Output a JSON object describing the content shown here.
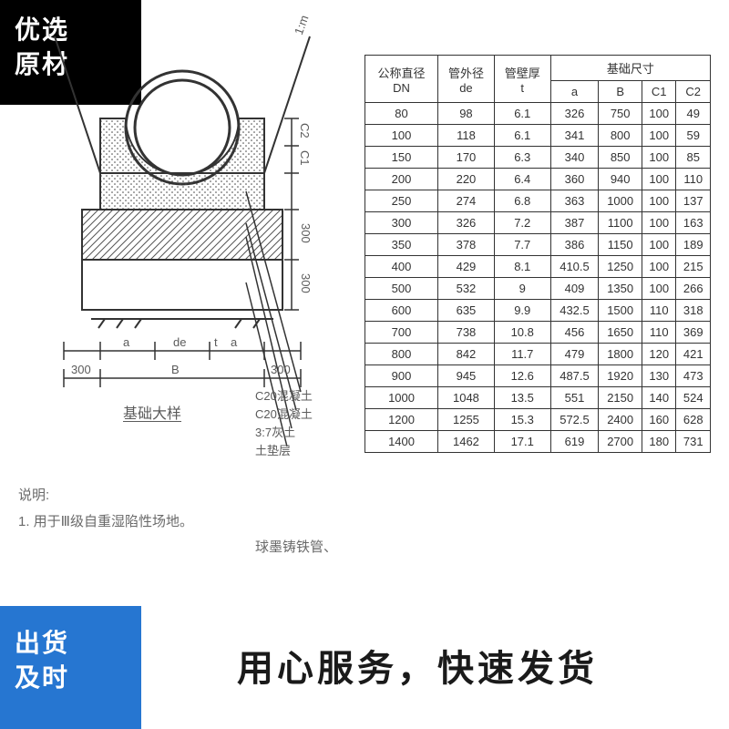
{
  "badges": {
    "top_left_line1": "优选",
    "top_left_line2": "原材",
    "bottom_left_line1": "出货",
    "bottom_left_line2": "及时"
  },
  "overlay": "用心服务，快速发货",
  "diagram": {
    "title": "基础大样",
    "slope_label": "1:m",
    "dim_top_right_1": "C2",
    "dim_top_right_2": "C1",
    "dim_mid_1": "300",
    "dim_mid_2": "300",
    "dim_bottom_left_300": "300",
    "dim_bottom_right_300": "300",
    "dim_a": "a",
    "dim_de": "de",
    "dim_B": "B",
    "dim_t": "t",
    "callout_1": "C20混凝土",
    "callout_2": "C20混凝土",
    "callout_3": "3:7灰土",
    "callout_4": "土垫层"
  },
  "explain": {
    "heading": "说明:",
    "item1": "1. 用于Ⅲ级自重湿陷性场地。",
    "item2_tail": "球墨铸铁管、"
  },
  "table": {
    "col_group_dim": "基础尺寸",
    "columns_row1": [
      "公称直径",
      "管外径",
      "管壁厚",
      "基础尺寸"
    ],
    "columns_row2": [
      "DN",
      "de",
      "t",
      "a",
      "B",
      "C1",
      "C2"
    ],
    "rows": [
      [
        "80",
        "98",
        "6.1",
        "326",
        "750",
        "100",
        "49"
      ],
      [
        "100",
        "118",
        "6.1",
        "341",
        "800",
        "100",
        "59"
      ],
      [
        "150",
        "170",
        "6.3",
        "340",
        "850",
        "100",
        "85"
      ],
      [
        "200",
        "220",
        "6.4",
        "360",
        "940",
        "100",
        "110"
      ],
      [
        "250",
        "274",
        "6.8",
        "363",
        "1000",
        "100",
        "137"
      ],
      [
        "300",
        "326",
        "7.2",
        "387",
        "1100",
        "100",
        "163"
      ],
      [
        "350",
        "378",
        "7.7",
        "386",
        "1150",
        "100",
        "189"
      ],
      [
        "400",
        "429",
        "8.1",
        "410.5",
        "1250",
        "100",
        "215"
      ],
      [
        "500",
        "532",
        "9",
        "409",
        "1350",
        "100",
        "266"
      ],
      [
        "600",
        "635",
        "9.9",
        "432.5",
        "1500",
        "110",
        "318"
      ],
      [
        "700",
        "738",
        "10.8",
        "456",
        "1650",
        "110",
        "369"
      ],
      [
        "800",
        "842",
        "11.7",
        "479",
        "1800",
        "120",
        "421"
      ],
      [
        "900",
        "945",
        "12.6",
        "487.5",
        "1920",
        "130",
        "473"
      ],
      [
        "1000",
        "1048",
        "13.5",
        "551",
        "2150",
        "140",
        "524"
      ],
      [
        "1200",
        "1255",
        "15.3",
        "572.5",
        "2400",
        "160",
        "628"
      ],
      [
        "1400",
        "1462",
        "17.1",
        "619",
        "2700",
        "180",
        "731"
      ]
    ]
  },
  "colors": {
    "black": "#000000",
    "blue": "#2676d1",
    "ink": "#5b5b5b",
    "table_border": "#333333"
  }
}
